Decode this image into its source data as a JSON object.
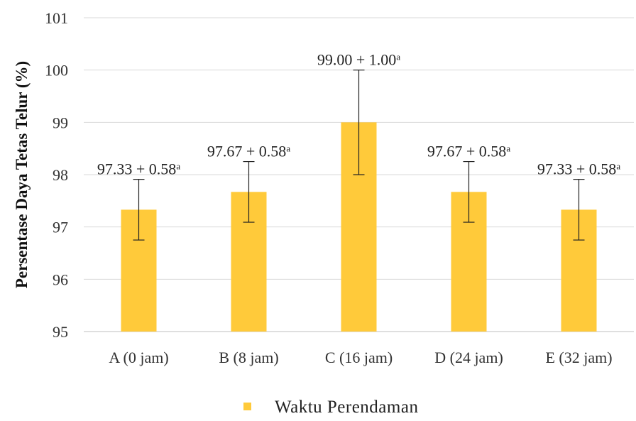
{
  "chart_data": {
    "type": "bar",
    "ylabel": "Persentase  Daya Tetas Telur (%)",
    "xlabel": "",
    "ylim": [
      95,
      101
    ],
    "yticks": [
      95,
      96,
      97,
      98,
      99,
      100,
      101
    ],
    "grid": true,
    "categories": [
      "A (0 jam)",
      "B (8 jam)",
      "C (16 jam)",
      "D (24 jam)",
      "E (32 jam)"
    ],
    "series": [
      {
        "name": "Waktu Perendaman",
        "color": "#FFCA3A",
        "values": [
          97.33,
          97.67,
          99.0,
          97.67,
          97.33
        ],
        "errors": [
          0.58,
          0.58,
          1.0,
          0.58,
          0.58
        ]
      }
    ],
    "data_labels": [
      {
        "value": "97.33",
        "pm": "+ 0.58",
        "sup": "a"
      },
      {
        "value": "97.67",
        "pm": "+ 0.58",
        "sup": "a"
      },
      {
        "value": "99.00",
        "pm": "+ 1.00",
        "sup": "a"
      },
      {
        "value": "97.67",
        "pm": "+ 0.58",
        "sup": "a"
      },
      {
        "value": "97.33",
        "pm": "+ 0.58",
        "sup": "a"
      }
    ],
    "legend_position": "bottom"
  }
}
